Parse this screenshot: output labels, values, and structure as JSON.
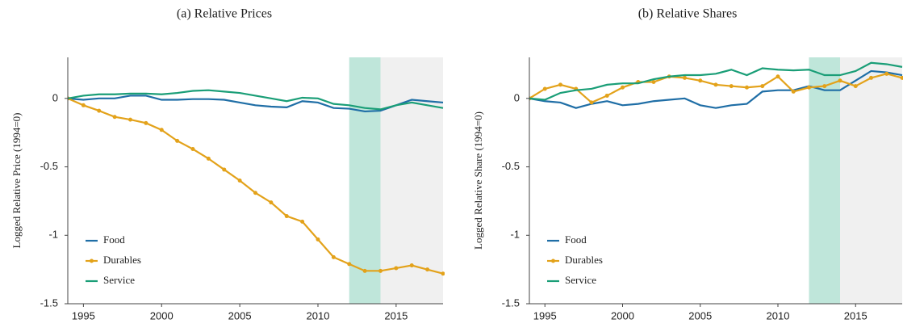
{
  "chart_data": [
    {
      "type": "line",
      "title": "(a) Relative Prices",
      "ylabel": "Logged Relative Price (1994=0)",
      "x": [
        1994,
        1995,
        1996,
        1997,
        1998,
        1999,
        2000,
        2001,
        2002,
        2003,
        2004,
        2005,
        2006,
        2007,
        2008,
        2009,
        2010,
        2011,
        2012,
        2013,
        2014,
        2015,
        2016,
        2017,
        2018
      ],
      "xlim": [
        1994,
        2018
      ],
      "xticks": [
        1995,
        2000,
        2005,
        2010,
        2015
      ],
      "ylim": [
        -1.5,
        0.3
      ],
      "yticks": [
        0,
        -0.5,
        -1,
        -1.5
      ],
      "legend": "lower left",
      "highlights": [
        {
          "from": 2012,
          "to": 2014,
          "color": "#bfe6da"
        },
        {
          "from": 2014,
          "to": 2018,
          "color": "#f0f0f0"
        }
      ],
      "series": [
        {
          "name": "Food",
          "color": "#1f6ea6",
          "marker": false,
          "values": [
            0,
            -0.01,
            0,
            0,
            0.02,
            0.02,
            -0.01,
            -0.01,
            -0.005,
            -0.005,
            -0.01,
            -0.03,
            -0.05,
            -0.06,
            -0.065,
            -0.02,
            -0.03,
            -0.07,
            -0.075,
            -0.095,
            -0.09,
            -0.05,
            -0.01,
            -0.02,
            -0.03
          ]
        },
        {
          "name": "Durables",
          "color": "#e3a21a",
          "marker": true,
          "values": [
            0,
            -0.05,
            -0.09,
            -0.135,
            -0.155,
            -0.18,
            -0.23,
            -0.31,
            -0.37,
            -0.44,
            -0.52,
            -0.6,
            -0.69,
            -0.76,
            -0.86,
            -0.9,
            -1.03,
            -1.16,
            -1.21,
            -1.26,
            -1.26,
            -1.24,
            -1.22,
            -1.25,
            -1.28
          ]
        },
        {
          "name": "Service",
          "color": "#1a9e77",
          "marker": false,
          "values": [
            0,
            0.02,
            0.03,
            0.03,
            0.035,
            0.035,
            0.03,
            0.04,
            0.055,
            0.06,
            0.05,
            0.04,
            0.02,
            0,
            -0.02,
            0.005,
            0,
            -0.04,
            -0.05,
            -0.07,
            -0.08,
            -0.05,
            -0.03,
            -0.05,
            -0.07
          ]
        }
      ]
    },
    {
      "type": "line",
      "title": "(b) Relative Shares",
      "ylabel": "Logged Relative Share (1994=0)",
      "x": [
        1994,
        1995,
        1996,
        1997,
        1998,
        1999,
        2000,
        2001,
        2002,
        2003,
        2004,
        2005,
        2006,
        2007,
        2008,
        2009,
        2010,
        2011,
        2012,
        2013,
        2014,
        2015,
        2016,
        2017,
        2018
      ],
      "xlim": [
        1994,
        2018
      ],
      "xticks": [
        1995,
        2000,
        2005,
        2010,
        2015
      ],
      "ylim": [
        -1.5,
        0.3
      ],
      "yticks": [
        0,
        -0.5,
        -1,
        -1.5
      ],
      "legend": "lower left",
      "highlights": [
        {
          "from": 2012,
          "to": 2014,
          "color": "#bfe6da"
        },
        {
          "from": 2014,
          "to": 2018,
          "color": "#f0f0f0"
        }
      ],
      "series": [
        {
          "name": "Food",
          "color": "#1f6ea6",
          "marker": false,
          "values": [
            0,
            -0.02,
            -0.03,
            -0.07,
            -0.04,
            -0.02,
            -0.05,
            -0.04,
            -0.02,
            -0.01,
            0,
            -0.05,
            -0.07,
            -0.05,
            -0.04,
            0.05,
            0.06,
            0.06,
            0.09,
            0.06,
            0.06,
            0.13,
            0.2,
            0.19,
            0.17
          ]
        },
        {
          "name": "Durables",
          "color": "#e3a21a",
          "marker": true,
          "values": [
            0,
            0.07,
            0.1,
            0.07,
            -0.03,
            0.02,
            0.08,
            0.12,
            0.12,
            0.16,
            0.15,
            0.13,
            0.1,
            0.09,
            0.08,
            0.09,
            0.16,
            0.05,
            0.08,
            0.09,
            0.13,
            0.09,
            0.15,
            0.18,
            0.15
          ]
        },
        {
          "name": "Service",
          "color": "#1a9e77",
          "marker": false,
          "values": [
            0,
            -0.01,
            0.04,
            0.06,
            0.07,
            0.1,
            0.11,
            0.11,
            0.14,
            0.16,
            0.17,
            0.17,
            0.18,
            0.21,
            0.17,
            0.22,
            0.21,
            0.205,
            0.21,
            0.17,
            0.17,
            0.2,
            0.26,
            0.25,
            0.23
          ]
        }
      ]
    }
  ]
}
